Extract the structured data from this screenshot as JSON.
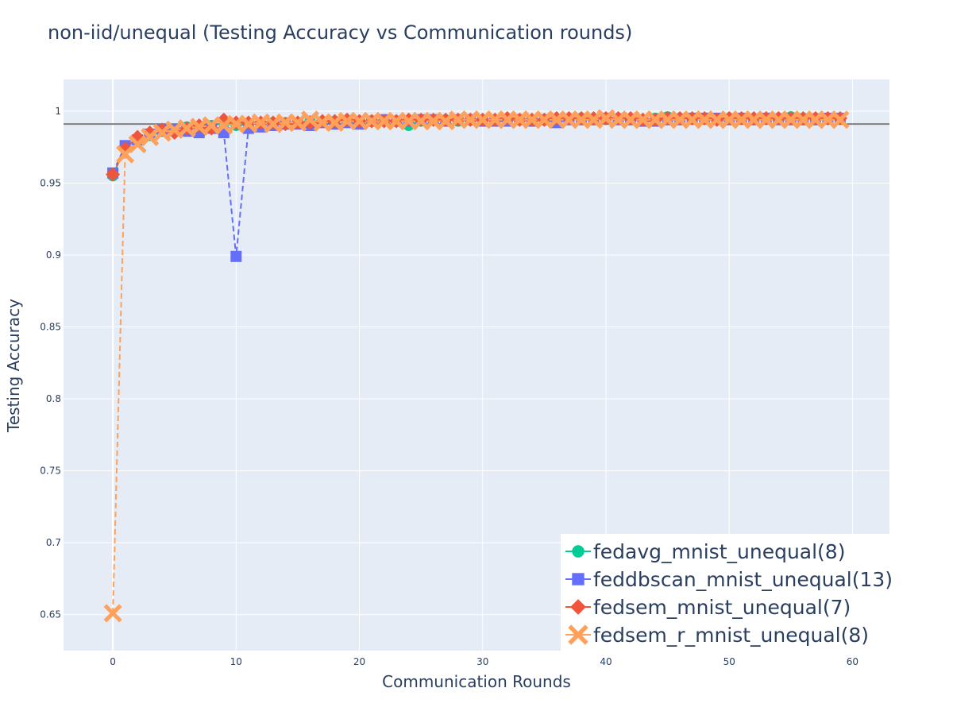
{
  "chart_data": {
    "type": "line",
    "title": "non-iid/unequal (Testing Accuracy vs Communication rounds)",
    "xlabel": "Communication Rounds",
    "ylabel": "Testing Accuracy",
    "xlim": [
      -4,
      63
    ],
    "ylim": [
      0.625,
      1.022
    ],
    "x_ticks": [
      0,
      10,
      20,
      30,
      40,
      50,
      60
    ],
    "x_tick_labels": [
      "0",
      "10",
      "20",
      "30",
      "40",
      "50",
      "60"
    ],
    "y_ticks": [
      0.65,
      0.7,
      0.75,
      0.8,
      0.85,
      0.9,
      0.95,
      1
    ],
    "y_tick_labels": [
      "0.65",
      "0.7",
      "0.75",
      "0.8",
      "0.85",
      "0.9",
      "0.95",
      "1"
    ],
    "grid": true,
    "legend_position": "bottom-right",
    "reference_line": {
      "y": 0.991,
      "color": "#808080"
    },
    "x": [
      0,
      1,
      2,
      3,
      4,
      5,
      6,
      7,
      8,
      9,
      10,
      11,
      12,
      13,
      14,
      15,
      16,
      17,
      18,
      19,
      20,
      21,
      22,
      23,
      24,
      25,
      26,
      27,
      28,
      29,
      30,
      31,
      32,
      33,
      34,
      35,
      36,
      37,
      38,
      39,
      40,
      41,
      42,
      43,
      44,
      45,
      46,
      47,
      48,
      49,
      50,
      51,
      52,
      53,
      54,
      55,
      56,
      57,
      58,
      59
    ],
    "series": [
      {
        "name": "fedavg_mnist_unequal(8)",
        "color": "#00cc96",
        "marker": "circle",
        "values": [
          0.955,
          0.975,
          0.98,
          0.983,
          0.986,
          0.987,
          0.989,
          0.988,
          0.99,
          0.991,
          0.99,
          0.991,
          0.991,
          0.992,
          0.992,
          0.992,
          0.993,
          0.992,
          0.993,
          0.993,
          0.993,
          0.993,
          0.994,
          0.993,
          0.99,
          0.993,
          0.994,
          0.994,
          0.993,
          0.994,
          0.994,
          0.994,
          0.993,
          0.994,
          0.994,
          0.994,
          0.994,
          0.994,
          0.995,
          0.994,
          0.995,
          0.995,
          0.994,
          0.993,
          0.995,
          0.996,
          0.995,
          0.995,
          0.995,
          0.995,
          0.995,
          0.995,
          0.994,
          0.995,
          0.995,
          0.996,
          0.995,
          0.995,
          0.995,
          0.995
        ]
      },
      {
        "name": "feddbscan_mnist_unequal(13)",
        "color": "#636efa",
        "marker": "square",
        "values": [
          0.957,
          0.976,
          0.98,
          0.984,
          0.987,
          0.987,
          0.986,
          0.985,
          0.988,
          0.985,
          0.899,
          0.988,
          0.989,
          0.99,
          0.991,
          0.991,
          0.99,
          0.992,
          0.991,
          0.992,
          0.991,
          0.993,
          0.994,
          0.993,
          0.993,
          0.994,
          0.994,
          0.993,
          0.994,
          0.994,
          0.993,
          0.993,
          0.993,
          0.994,
          0.993,
          0.994,
          0.992,
          0.994,
          0.994,
          0.994,
          0.995,
          0.994,
          0.994,
          0.993,
          0.993,
          0.994,
          0.994,
          0.995,
          0.995,
          0.995,
          0.994,
          0.995,
          0.994,
          0.995,
          0.994,
          0.994,
          0.994,
          0.994,
          0.995,
          0.995
        ]
      },
      {
        "name": "fedsem_mnist_unequal(7)",
        "color": "#ef553b",
        "marker": "diamond",
        "values": [
          0.956,
          0.974,
          0.982,
          0.985,
          0.987,
          0.985,
          0.988,
          0.99,
          0.988,
          0.994,
          0.992,
          0.992,
          0.992,
          0.992,
          0.991,
          0.992,
          0.992,
          0.993,
          0.993,
          0.994,
          0.993,
          0.993,
          0.993,
          0.993,
          0.994,
          0.994,
          0.994,
          0.994,
          0.994,
          0.994,
          0.994,
          0.994,
          0.995,
          0.994,
          0.994,
          0.994,
          0.995,
          0.995,
          0.995,
          0.995,
          0.995,
          0.995,
          0.995,
          0.994,
          0.994,
          0.995,
          0.995,
          0.995,
          0.995,
          0.994,
          0.995,
          0.995,
          0.995,
          0.995,
          0.995,
          0.995,
          0.995,
          0.995,
          0.995,
          0.995
        ]
      },
      {
        "name": "fedsem_r_mnist_unequal(8)",
        "color": "#ffa15a",
        "marker": "x",
        "values": [
          0.651,
          0.97,
          0.977,
          0.982,
          0.985,
          0.987,
          0.988,
          0.989,
          0.99,
          0.99,
          0.991,
          0.991,
          0.992,
          0.991,
          0.992,
          0.992,
          0.994,
          0.992,
          0.992,
          0.993,
          0.993,
          0.993,
          0.993,
          0.993,
          0.993,
          0.993,
          0.993,
          0.993,
          0.994,
          0.994,
          0.994,
          0.994,
          0.994,
          0.994,
          0.994,
          0.994,
          0.994,
          0.994,
          0.994,
          0.994,
          0.995,
          0.994,
          0.994,
          0.994,
          0.994,
          0.994,
          0.994,
          0.994,
          0.994,
          0.994,
          0.994,
          0.994,
          0.994,
          0.994,
          0.994,
          0.994,
          0.994,
          0.994,
          0.994,
          0.994
        ]
      }
    ]
  }
}
